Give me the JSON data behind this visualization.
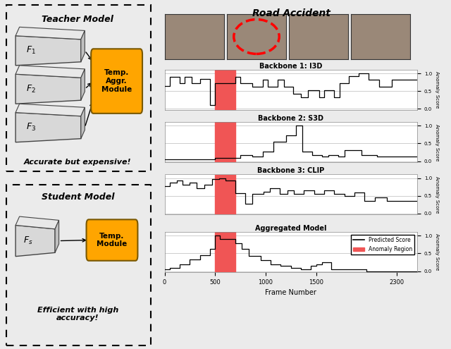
{
  "title": "Road Accident",
  "anomaly_region": [
    500,
    700
  ],
  "xlim": [
    0,
    2500
  ],
  "xticks": [
    0,
    500,
    1000,
    1500,
    2300
  ],
  "xlabel": "Frame Number",
  "anomaly_color": "#f05555",
  "line_color": "black",
  "subplot_titles": [
    "Backbone 1: I3D",
    "Backbone 2: S3D",
    "Backbone 3: CLIP",
    "Aggregated Model"
  ],
  "i3d_x": [
    0,
    50,
    50,
    150,
    150,
    200,
    200,
    270,
    270,
    350,
    350,
    450,
    450,
    500,
    500,
    700,
    700,
    750,
    750,
    870,
    870,
    970,
    970,
    1020,
    1020,
    1120,
    1120,
    1180,
    1180,
    1270,
    1270,
    1350,
    1350,
    1420,
    1420,
    1530,
    1530,
    1580,
    1580,
    1680,
    1680,
    1730,
    1730,
    1820,
    1820,
    1920,
    1920,
    2020,
    2020,
    2120,
    2120,
    2250,
    2250,
    2500
  ],
  "i3d_y": [
    0.65,
    0.65,
    0.9,
    0.9,
    0.72,
    0.72,
    0.9,
    0.9,
    0.72,
    0.72,
    0.85,
    0.85,
    0.1,
    0.1,
    0.72,
    0.72,
    0.9,
    0.9,
    0.72,
    0.72,
    0.62,
    0.62,
    0.82,
    0.82,
    0.62,
    0.62,
    0.82,
    0.82,
    0.62,
    0.62,
    0.42,
    0.42,
    0.32,
    0.32,
    0.52,
    0.52,
    0.32,
    0.32,
    0.52,
    0.52,
    0.32,
    0.32,
    0.72,
    0.72,
    0.92,
    0.92,
    1.0,
    1.0,
    0.82,
    0.82,
    0.62,
    0.62,
    0.82,
    0.82
  ],
  "s3d_x": [
    0,
    500,
    500,
    700,
    700,
    750,
    750,
    870,
    870,
    970,
    970,
    1080,
    1080,
    1200,
    1200,
    1300,
    1300,
    1360,
    1360,
    1460,
    1460,
    1560,
    1560,
    1620,
    1620,
    1720,
    1720,
    1780,
    1780,
    1950,
    1950,
    2100,
    2100,
    2500
  ],
  "s3d_y": [
    0.05,
    0.05,
    0.1,
    0.1,
    0.1,
    0.1,
    0.18,
    0.18,
    0.13,
    0.13,
    0.28,
    0.28,
    0.55,
    0.55,
    0.72,
    0.72,
    1.0,
    1.0,
    0.28,
    0.28,
    0.18,
    0.18,
    0.13,
    0.13,
    0.18,
    0.18,
    0.13,
    0.13,
    0.32,
    0.32,
    0.18,
    0.18,
    0.13,
    0.13
  ],
  "clip_x": [
    0,
    50,
    50,
    120,
    120,
    180,
    180,
    250,
    250,
    320,
    320,
    390,
    390,
    470,
    470,
    540,
    540,
    600,
    600,
    700,
    700,
    800,
    800,
    870,
    870,
    980,
    980,
    1040,
    1040,
    1140,
    1140,
    1220,
    1220,
    1280,
    1280,
    1380,
    1380,
    1480,
    1480,
    1580,
    1580,
    1680,
    1680,
    1780,
    1780,
    1880,
    1880,
    1980,
    1980,
    2080,
    2080,
    2200,
    2200,
    2500
  ],
  "clip_y": [
    0.78,
    0.78,
    0.88,
    0.88,
    0.93,
    0.93,
    0.82,
    0.82,
    0.88,
    0.88,
    0.72,
    0.72,
    0.82,
    0.82,
    0.97,
    0.97,
    1.0,
    1.0,
    0.93,
    0.93,
    0.58,
    0.58,
    0.28,
    0.28,
    0.55,
    0.55,
    0.62,
    0.62,
    0.72,
    0.72,
    0.55,
    0.55,
    0.65,
    0.65,
    0.55,
    0.55,
    0.65,
    0.65,
    0.55,
    0.55,
    0.65,
    0.65,
    0.55,
    0.55,
    0.5,
    0.5,
    0.6,
    0.6,
    0.35,
    0.35,
    0.45,
    0.45,
    0.35,
    0.35
  ],
  "agg_x": [
    0,
    50,
    50,
    150,
    150,
    250,
    250,
    350,
    350,
    450,
    450,
    500,
    500,
    550,
    550,
    700,
    700,
    760,
    760,
    830,
    830,
    950,
    950,
    1050,
    1050,
    1150,
    1150,
    1250,
    1250,
    1350,
    1350,
    1450,
    1450,
    1500,
    1500,
    1560,
    1560,
    1650,
    1650,
    2000,
    2000,
    2500
  ],
  "agg_y": [
    0.05,
    0.05,
    0.1,
    0.1,
    0.2,
    0.2,
    0.32,
    0.32,
    0.45,
    0.45,
    0.62,
    0.62,
    1.0,
    1.0,
    0.9,
    0.9,
    0.78,
    0.78,
    0.62,
    0.62,
    0.42,
    0.42,
    0.3,
    0.3,
    0.2,
    0.2,
    0.15,
    0.15,
    0.1,
    0.1,
    0.05,
    0.05,
    0.15,
    0.15,
    0.2,
    0.2,
    0.25,
    0.25,
    0.05,
    0.05,
    0.0,
    0.0
  ],
  "bg_color": "#ebebeb"
}
